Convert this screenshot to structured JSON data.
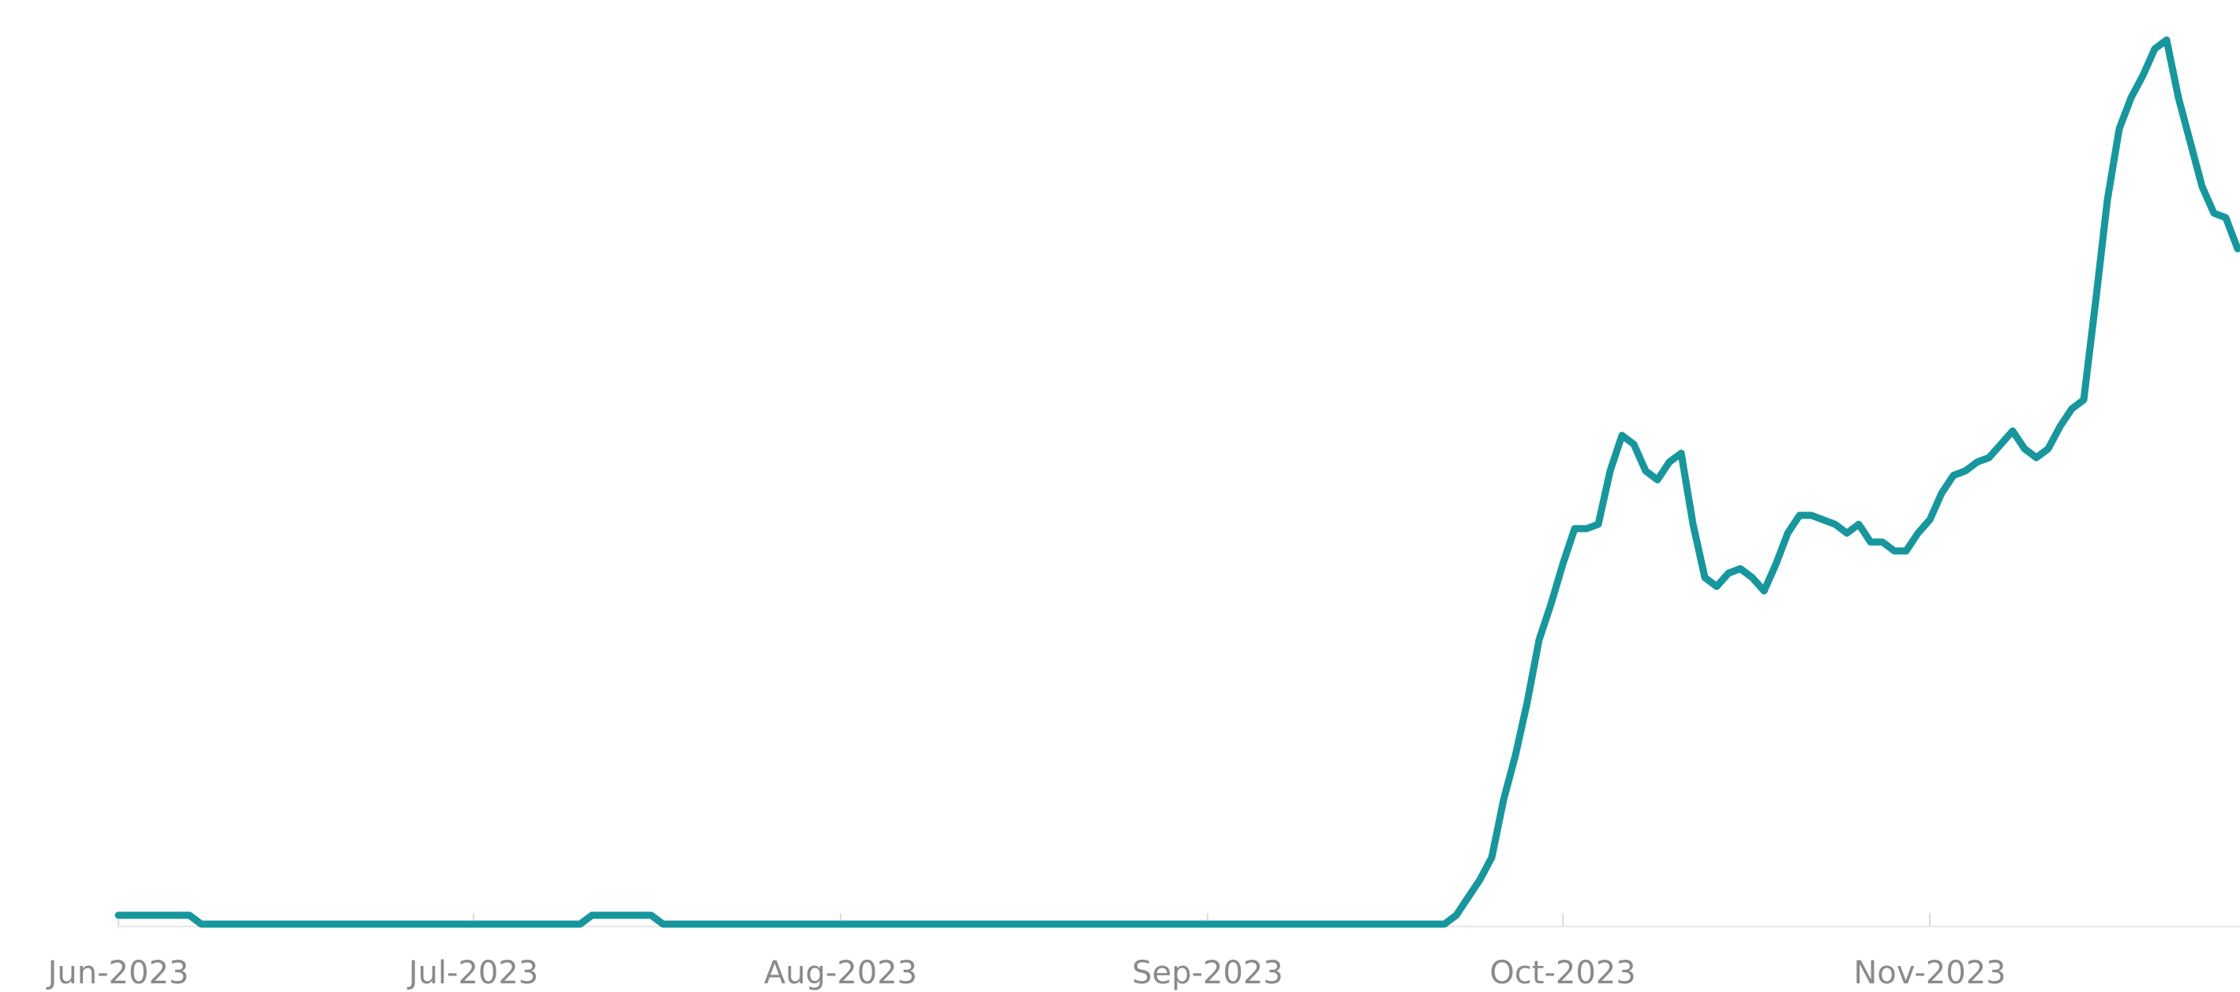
{
  "chart_data": {
    "type": "line",
    "categories": [
      "Jun-2023",
      null,
      null,
      null,
      null,
      null,
      null,
      null,
      null,
      null,
      null,
      null,
      null,
      null,
      null,
      null,
      null,
      null,
      null,
      null,
      null,
      null,
      null,
      null,
      null,
      null,
      null,
      null,
      null,
      null,
      "Jul-2023",
      null,
      null,
      null,
      null,
      null,
      null,
      null,
      null,
      null,
      null,
      null,
      null,
      null,
      null,
      null,
      null,
      null,
      null,
      null,
      null,
      null,
      null,
      null,
      null,
      null,
      null,
      null,
      null,
      null,
      null,
      "Aug-2023",
      null,
      null,
      null,
      null,
      null,
      null,
      null,
      null,
      null,
      null,
      null,
      null,
      null,
      null,
      null,
      null,
      null,
      null,
      null,
      null,
      null,
      null,
      null,
      null,
      null,
      null,
      null,
      null,
      null,
      null,
      "Sep-2023",
      null,
      null,
      null,
      null,
      null,
      null,
      null,
      null,
      null,
      null,
      null,
      null,
      null,
      null,
      null,
      null,
      null,
      null,
      null,
      null,
      null,
      null,
      null,
      null,
      null,
      null,
      null,
      null,
      null,
      "Oct-2023",
      null,
      null,
      null,
      null,
      null,
      null,
      null,
      null,
      null,
      null,
      null,
      null,
      null,
      null,
      null,
      null,
      null,
      null,
      null,
      null,
      null,
      null,
      null,
      null,
      null,
      null,
      null,
      null,
      null,
      null,
      "Nov-2023",
      null,
      null,
      null,
      null,
      null,
      null,
      null,
      null,
      null,
      null,
      null,
      null,
      null,
      null,
      null,
      null,
      null,
      null,
      null,
      null,
      null,
      null,
      null,
      null,
      null,
      null
    ],
    "series": [
      {
        "color": "#17979d",
        "values": [
          1,
          1,
          1,
          1,
          1,
          1,
          1,
          0,
          0,
          0,
          0,
          0,
          0,
          0,
          0,
          0,
          0,
          0,
          0,
          0,
          0,
          0,
          0,
          0,
          0,
          0,
          0,
          0,
          0,
          0,
          0,
          0,
          0,
          0,
          0,
          0,
          0,
          0,
          0,
          0,
          1,
          1,
          1,
          1,
          1,
          1,
          0,
          0,
          0,
          0,
          0,
          0,
          0,
          0,
          0,
          0,
          0,
          0,
          0,
          0,
          0,
          0,
          0,
          0,
          0,
          0,
          0,
          0,
          0,
          0,
          0,
          0,
          0,
          0,
          0,
          0,
          0,
          0,
          0,
          0,
          0,
          0,
          0,
          0,
          0,
          0,
          0,
          0,
          0,
          0,
          0,
          0,
          0,
          0,
          0,
          0,
          0,
          0,
          0,
          0,
          0,
          0,
          0,
          0,
          0,
          0,
          0,
          0,
          0,
          0,
          0,
          0,
          0,
          1,
          3,
          5,
          7.5,
          14,
          19,
          25,
          32,
          36,
          40.5,
          44.5,
          44.5,
          45,
          51,
          55,
          54,
          51,
          50,
          52,
          53,
          45,
          39,
          38,
          39.5,
          40,
          39,
          37.5,
          40.5,
          44,
          46,
          46,
          45.5,
          45,
          44,
          45,
          43,
          43,
          42,
          42,
          44,
          45.5,
          48.5,
          50.5,
          51,
          52,
          52.5,
          54,
          55.5,
          53.5,
          52.5,
          53.5,
          56,
          58,
          59,
          70,
          81.5,
          89.5,
          93,
          95.5,
          98.5,
          99.5,
          93,
          88,
          83,
          80,
          79.5,
          76
        ]
      }
    ],
    "ylim": [
      0,
      100
    ]
  }
}
